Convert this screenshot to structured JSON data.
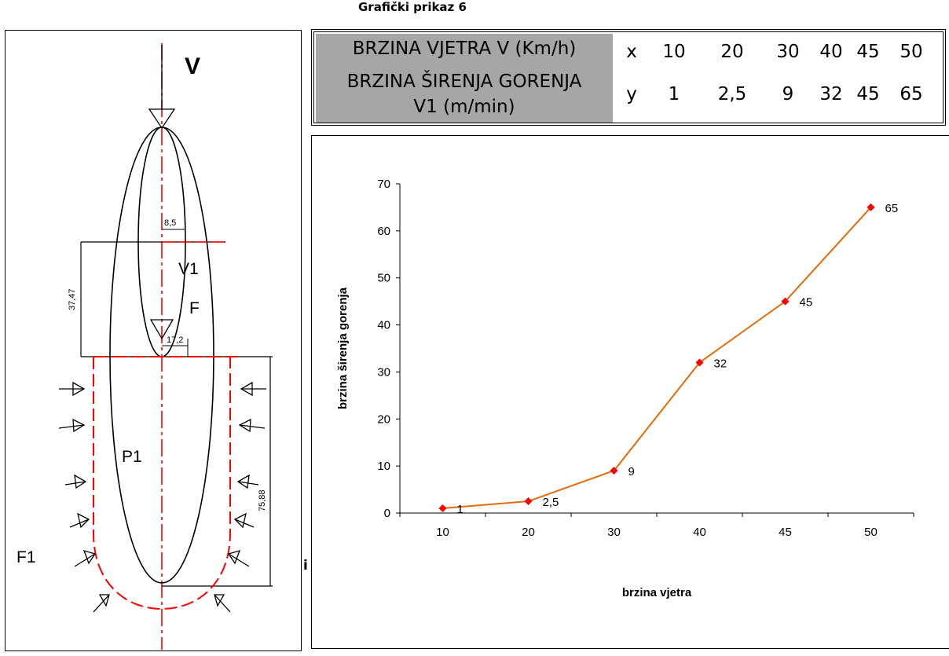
{
  "caption": "Grafički prikaz 6",
  "diagram": {
    "labels": {
      "v": "V",
      "v1": "V1",
      "f": "F",
      "p1": "P1",
      "f1": "F1",
      "dim_85": "8,5",
      "dim_3747": "37,47",
      "dim_172": "17,2",
      "dim_7588": "75,88"
    },
    "stray_text": "i"
  },
  "table": {
    "row1_label": "BRZINA VJETRA V (Km/h)",
    "row2_label_line1": "BRZINA ŠIRENJA GORENJA",
    "row2_label_line2": "V1 (m/min)",
    "row1_key": "x",
    "row2_key": "y",
    "row1_values": [
      "10",
      "20",
      "30",
      "40",
      "45",
      "50"
    ],
    "row2_values": [
      "1",
      "2,5",
      "9",
      "32",
      "45",
      "65"
    ]
  },
  "chart_data": {
    "type": "line",
    "categories": [
      "10",
      "20",
      "30",
      "40",
      "45",
      "50"
    ],
    "series": [
      {
        "values": [
          1,
          2.5,
          9,
          32,
          45,
          65
        ],
        "data_labels": [
          "1",
          "2,5",
          "9",
          "32",
          "45",
          "65"
        ],
        "color": "#e36c09",
        "marker_color": "#ff0000"
      }
    ],
    "xlabel": "brzina vjetra",
    "ylabel": "brzina širenja gorenja",
    "ylim": [
      0,
      70
    ],
    "yticks": [
      0,
      10,
      20,
      30,
      40,
      50,
      60,
      70
    ],
    "grid": false,
    "legend": "none"
  }
}
